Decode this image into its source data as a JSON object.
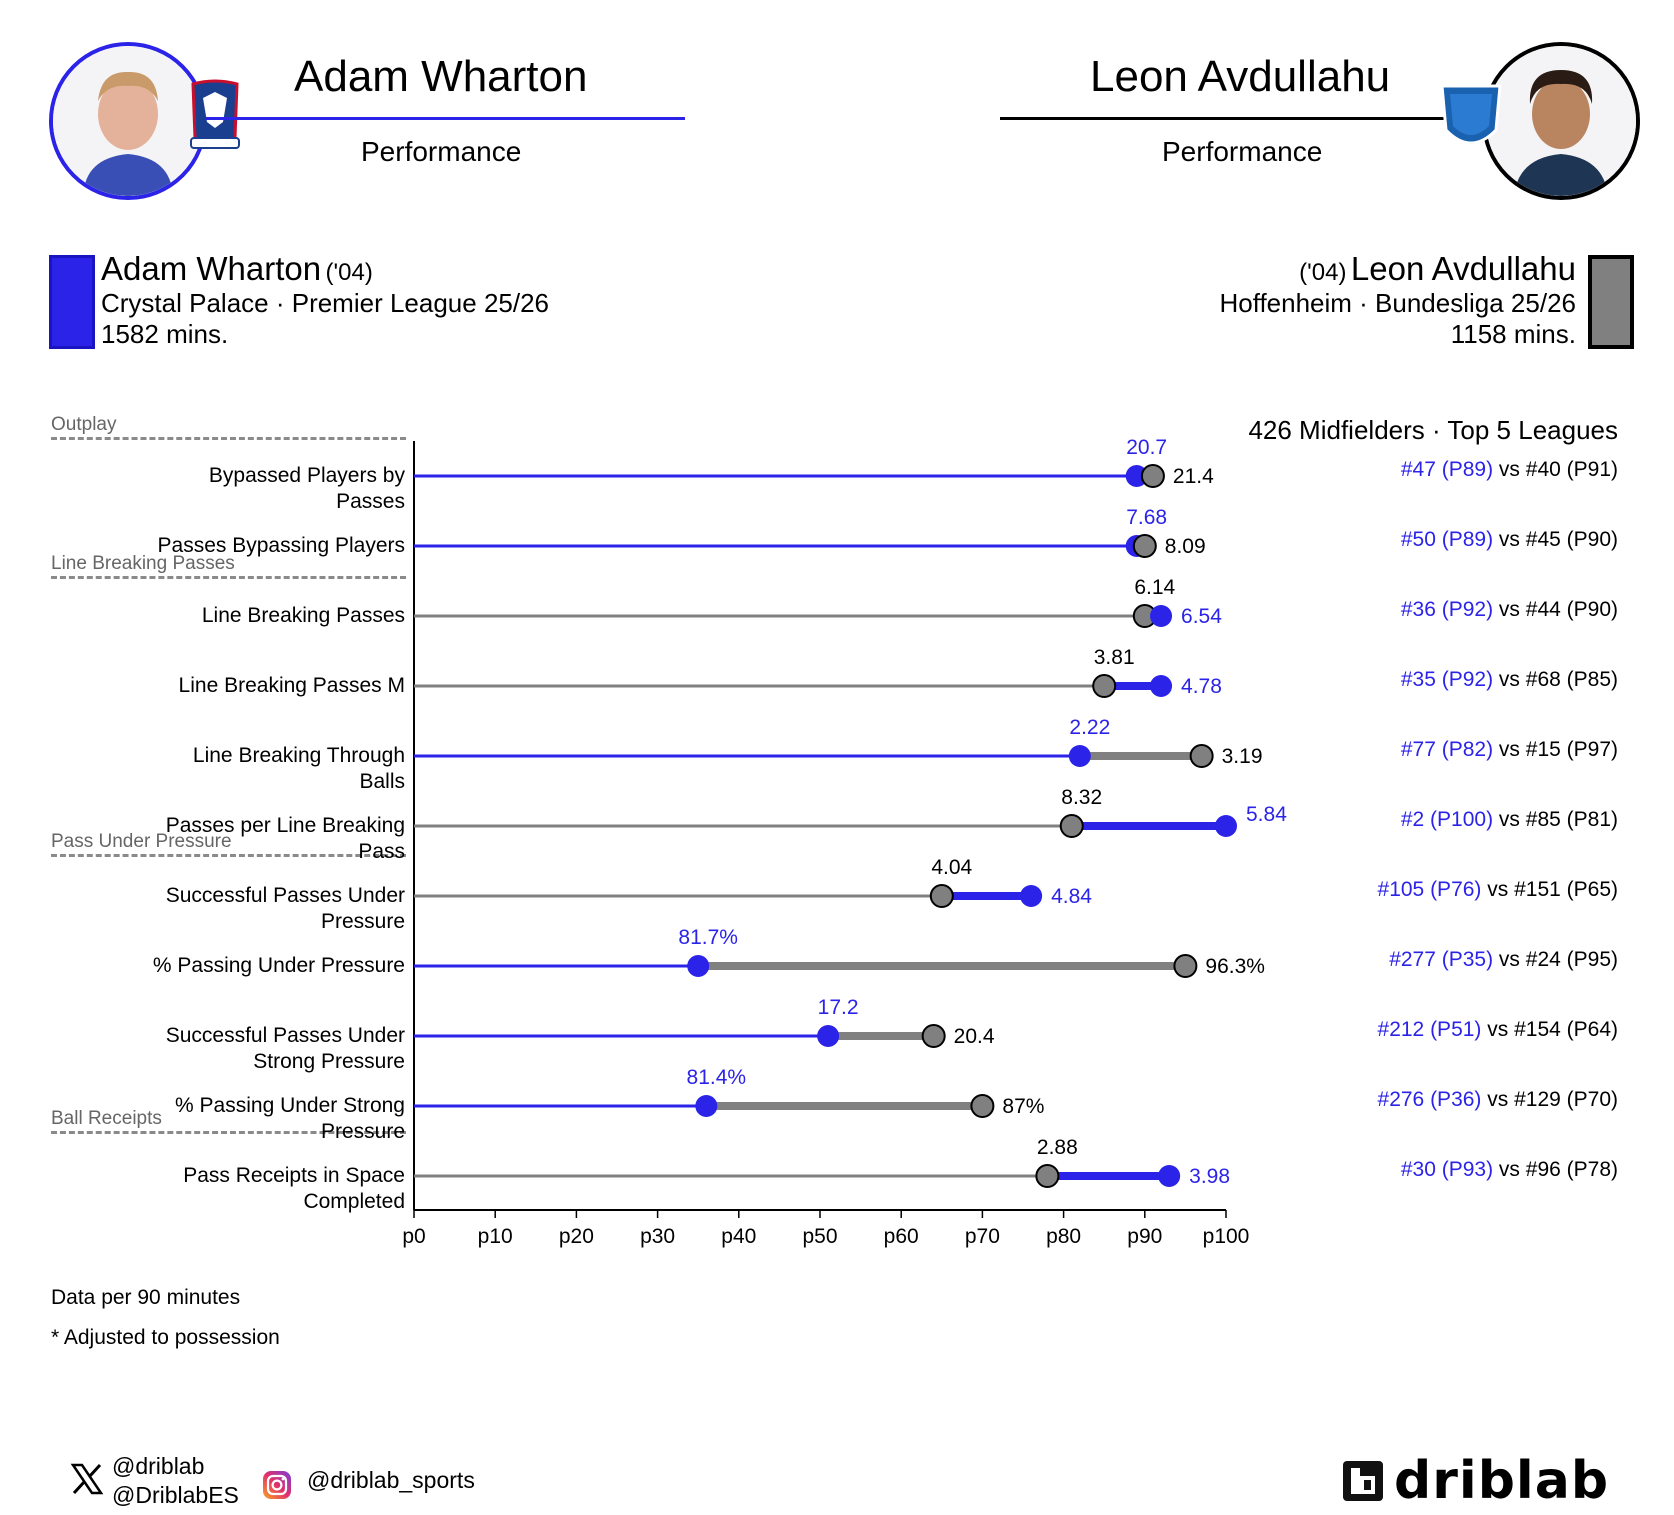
{
  "header": {
    "left_name": "Adam Wharton",
    "left_sub": "Performance",
    "right_name": "Leon Avdullahu",
    "right_sub": "Performance"
  },
  "players": {
    "a": {
      "name": "Adam Wharton",
      "age": "('04)",
      "team_line": "Crystal Palace · Premier League 25/26",
      "minutes": "1582 mins.",
      "color": "#2b23e8"
    },
    "b": {
      "name": "Leon Avdullahu",
      "age": "('04)",
      "team_line": "Hoffenheim · Bundesliga 25/26",
      "minutes": "1158 mins.",
      "color": "#808080"
    }
  },
  "sections": [
    "Outplay",
    "Line Breaking Passes",
    "Pass Under Pressure",
    "Ball Receipts"
  ],
  "population": "426 Midfielders · Top 5 Leagues",
  "chart_data": {
    "type": "dumbbell",
    "xlim": [
      0,
      100
    ],
    "xticks": [
      "p0",
      "p10",
      "p20",
      "p30",
      "p40",
      "p50",
      "p60",
      "p70",
      "p80",
      "p90",
      "p100"
    ],
    "rows": [
      {
        "label": [
          "Bypassed Players by",
          "Passes"
        ],
        "a_pct": 89,
        "a_val": "20.7",
        "b_pct": 91,
        "b_val": "21.4",
        "a_rank": "#47 (P89)",
        "b_rank": "#40 (P91)"
      },
      {
        "label": [
          "Passes Bypassing Players"
        ],
        "a_pct": 89,
        "a_val": "7.68",
        "b_pct": 90,
        "b_val": "8.09",
        "a_rank": "#50 (P89)",
        "b_rank": "#45 (P90)"
      },
      {
        "label": [
          "Line Breaking Passes"
        ],
        "a_pct": 92,
        "a_val": "6.54",
        "b_pct": 90,
        "b_val": "6.14",
        "a_rank": "#36 (P92)",
        "b_rank": "#44 (P90)"
      },
      {
        "label": [
          "Line Breaking Passes M"
        ],
        "a_pct": 92,
        "a_val": "4.78",
        "b_pct": 85,
        "b_val": "3.81",
        "a_rank": "#35 (P92)",
        "b_rank": "#68 (P85)"
      },
      {
        "label": [
          "Line Breaking Through",
          "Balls"
        ],
        "a_pct": 82,
        "a_val": "2.22",
        "b_pct": 97,
        "b_val": "3.19",
        "a_rank": "#77 (P82)",
        "b_rank": "#15 (P97)"
      },
      {
        "label": [
          "Passes per Line Breaking",
          "Pass"
        ],
        "a_pct": 100,
        "a_val": "5.84",
        "b_pct": 81,
        "b_val": "8.32",
        "a_rank": "#2 (P100)",
        "b_rank": "#85 (P81)"
      },
      {
        "label": [
          "Successful Passes Under",
          "Pressure"
        ],
        "a_pct": 76,
        "a_val": "4.84",
        "b_pct": 65,
        "b_val": "4.04",
        "a_rank": "#105 (P76)",
        "b_rank": "#151 (P65)"
      },
      {
        "label": [
          "% Passing Under Pressure"
        ],
        "a_pct": 35,
        "a_val": "81.7%",
        "b_pct": 95,
        "b_val": "96.3%",
        "a_rank": "#277 (P35)",
        "b_rank": "#24 (P95)"
      },
      {
        "label": [
          "Successful Passes Under",
          "Strong Pressure"
        ],
        "a_pct": 51,
        "a_val": "17.2",
        "b_pct": 64,
        "b_val": "20.4",
        "a_rank": "#212 (P51)",
        "b_rank": "#154 (P64)"
      },
      {
        "label": [
          "% Passing Under Strong",
          "Pressure"
        ],
        "a_pct": 36,
        "a_val": "81.4%",
        "b_pct": 70,
        "b_val": "87%",
        "a_rank": "#276 (P36)",
        "b_rank": "#129 (P70)"
      },
      {
        "label": [
          "Pass Receipts in Space",
          "Completed"
        ],
        "a_pct": 93,
        "a_val": "3.98",
        "b_pct": 78,
        "b_val": "2.88",
        "a_rank": "#30 (P93)",
        "b_rank": "#96 (P78)"
      }
    ]
  },
  "notes": {
    "per90": "Data per 90 minutes",
    "adjusted": "* Adjusted to possession"
  },
  "footer": {
    "x_handle_1": "@driblab",
    "x_handle_2": "@DriblabES",
    "instagram": "@driblab_sports",
    "brand": "driblab"
  },
  "icons": [
    "x-logo-icon",
    "instagram-icon",
    "driblab-logo-icon",
    "crystal-palace-crest-icon",
    "hoffenheim-crest-icon"
  ]
}
